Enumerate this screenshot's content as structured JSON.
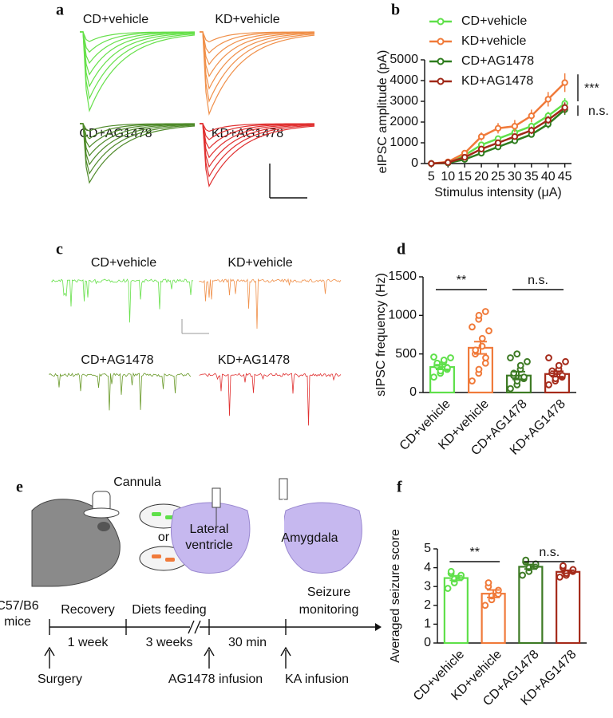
{
  "panel_a": {
    "label": "a",
    "traces": [
      "CD+vehicle",
      "KD+vehicle",
      "CD+AG1478",
      "KD+AG1478"
    ]
  },
  "panel_c": {
    "label": "c",
    "traces": [
      "CD+vehicle",
      "KD+vehicle",
      "CD+AG1478",
      "KD+AG1478"
    ]
  },
  "panel_e": {
    "label": "e",
    "cannula": "Cannula",
    "or": "or",
    "lateral_ventricle": [
      "Lateral",
      "ventricle"
    ],
    "amygdala": "Amygdala",
    "strain": [
      "C57/B6",
      "mice"
    ],
    "stages": [
      "Recovery",
      "Diets feeding"
    ],
    "monitoring": [
      "Seizure",
      "monitoring"
    ],
    "durations": [
      "1 week",
      "3 weeks",
      "30 min"
    ],
    "events": [
      "Surgery",
      "AG1478 infusion",
      "KA infusion"
    ]
  },
  "chart_data": [
    {
      "type": "line",
      "panel": "b",
      "xlabel": "Stimulus intensity (μA)",
      "ylabel": "eIPSC amplitude (pA)",
      "x": [
        5,
        10,
        15,
        20,
        25,
        30,
        35,
        40,
        45
      ],
      "xlim": [
        3,
        47
      ],
      "xticks": [
        5,
        10,
        15,
        20,
        25,
        30,
        35,
        40,
        45
      ],
      "ylim": [
        0,
        5000
      ],
      "yticks": [
        0,
        1000,
        2000,
        3000,
        4000,
        5000
      ],
      "series": [
        {
          "name": "CD+vehicle",
          "color": "#5fe04a",
          "values": [
            0,
            50,
            400,
            900,
            1200,
            1500,
            1800,
            2300,
            2900
          ],
          "errors": [
            20,
            40,
            80,
            120,
            150,
            150,
            180,
            200,
            250
          ]
        },
        {
          "name": "KD+vehicle",
          "color": "#f07a3a",
          "values": [
            0,
            80,
            500,
            1300,
            1700,
            1800,
            2300,
            3100,
            3900
          ],
          "errors": [
            20,
            50,
            100,
            200,
            250,
            300,
            300,
            350,
            450
          ]
        },
        {
          "name": "CD+AG1478",
          "color": "#2e7d1e",
          "values": [
            0,
            30,
            200,
            500,
            800,
            1100,
            1400,
            1900,
            2600
          ],
          "errors": [
            20,
            30,
            60,
            100,
            120,
            150,
            150,
            200,
            250
          ]
        },
        {
          "name": "KD+AG1478",
          "color": "#a02818",
          "values": [
            0,
            50,
            300,
            700,
            1000,
            1300,
            1600,
            2100,
            2700
          ],
          "errors": [
            20,
            40,
            60,
            100,
            120,
            150,
            180,
            200,
            250
          ]
        }
      ],
      "annotations": [
        "***",
        "n.s."
      ]
    },
    {
      "type": "bar",
      "panel": "d",
      "ylabel": "sIPSC frequency (Hz)",
      "categories": [
        "CD+vehicle",
        "KD+vehicle",
        "CD+AG1478",
        "KD+AG1478"
      ],
      "colors": [
        "#5fe04a",
        "#f07a3a",
        "#3d7a24",
        "#a52a1a"
      ],
      "values": [
        330,
        580,
        220,
        240
      ],
      "errors": [
        30,
        80,
        50,
        35
      ],
      "points": [
        [
          200,
          250,
          280,
          300,
          320,
          350,
          380,
          400,
          420,
          450,
          460
        ],
        [
          150,
          250,
          300,
          380,
          450,
          500,
          550,
          600,
          700,
          800,
          850,
          950,
          1000,
          1050
        ],
        [
          50,
          100,
          150,
          180,
          200,
          220,
          250,
          300,
          350,
          400,
          450,
          500
        ],
        [
          100,
          150,
          180,
          200,
          220,
          250,
          280,
          300,
          350,
          400,
          450
        ]
      ],
      "ylim": [
        0,
        1500
      ],
      "yticks": [
        0,
        500,
        1000,
        1500
      ],
      "annotations": [
        "**",
        "n.s."
      ]
    },
    {
      "type": "bar",
      "panel": "f",
      "ylabel": "Averaged seizure score",
      "categories": [
        "CD+vehicle",
        "KD+vehicle",
        "CD+AG1478",
        "KD+AG1478"
      ],
      "colors": [
        "#5fe04a",
        "#f07a3a",
        "#3d7a24",
        "#a52a1a"
      ],
      "values": [
        3.45,
        2.62,
        4.05,
        3.78
      ],
      "errors": [
        0.12,
        0.2,
        0.12,
        0.08
      ],
      "points": [
        [
          2.9,
          3.2,
          3.4,
          3.5,
          3.6,
          3.7,
          3.8
        ],
        [
          2.0,
          2.3,
          2.5,
          2.6,
          2.8,
          3.0,
          3.2
        ],
        [
          3.6,
          3.8,
          4.0,
          4.1,
          4.2,
          4.3,
          4.4
        ],
        [
          3.5,
          3.6,
          3.7,
          3.8,
          3.9,
          4.0,
          4.1
        ]
      ],
      "ylim": [
        0,
        5
      ],
      "yticks": [
        0,
        1,
        2,
        3,
        4,
        5
      ],
      "annotations": [
        "**",
        "n.s."
      ]
    }
  ]
}
